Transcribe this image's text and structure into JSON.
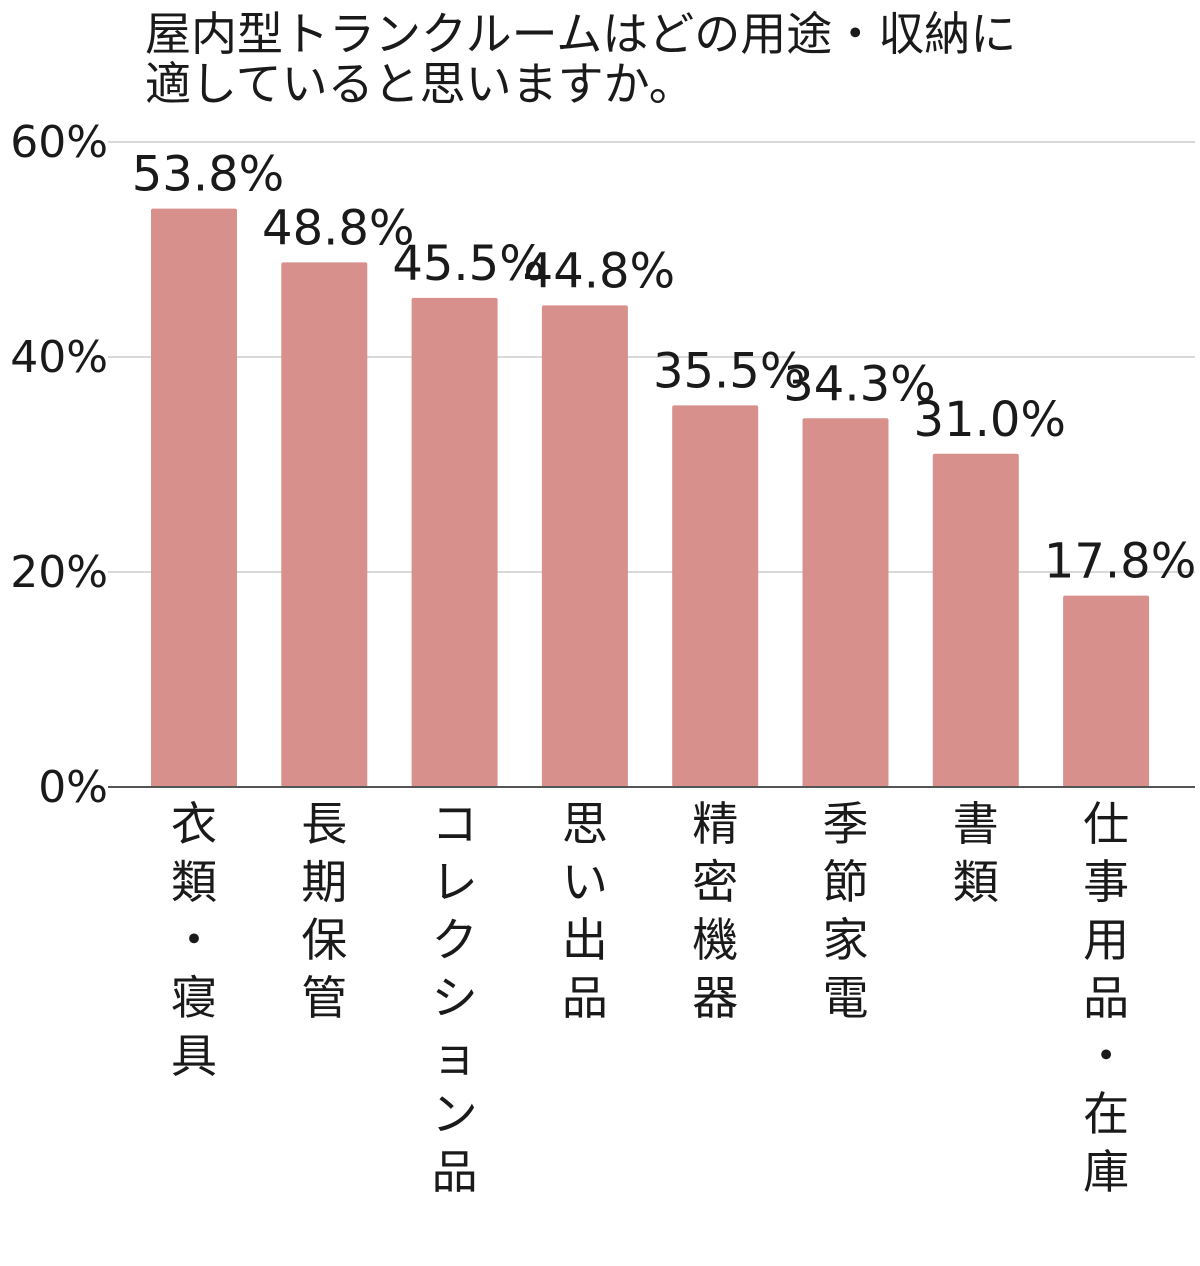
{
  "chart_data": {
    "type": "bar",
    "title_lines": [
      "屋内型トランクルームはどの用途・収納に",
      "適していると思いますか。"
    ],
    "categories": [
      "衣類・寝具",
      "長期保管",
      "コレクション品",
      "思い出品",
      "精密機器",
      "季節家電",
      "書類",
      "仕事用品・在庫"
    ],
    "values": [
      53.8,
      48.8,
      45.5,
      44.8,
      35.5,
      34.3,
      31.0,
      17.8
    ],
    "data_labels": [
      "53.8%",
      "48.8%",
      "45.5%",
      "44.8%",
      "35.5%",
      "34.3%",
      "31.0%",
      "17.8%"
    ],
    "ylim": [
      0,
      60
    ],
    "yticks": [
      0,
      20,
      40,
      60
    ],
    "ytick_labels": [
      "0%",
      "20%",
      "40%",
      "60%"
    ],
    "grid": true,
    "bar_color": "#d8908c"
  }
}
